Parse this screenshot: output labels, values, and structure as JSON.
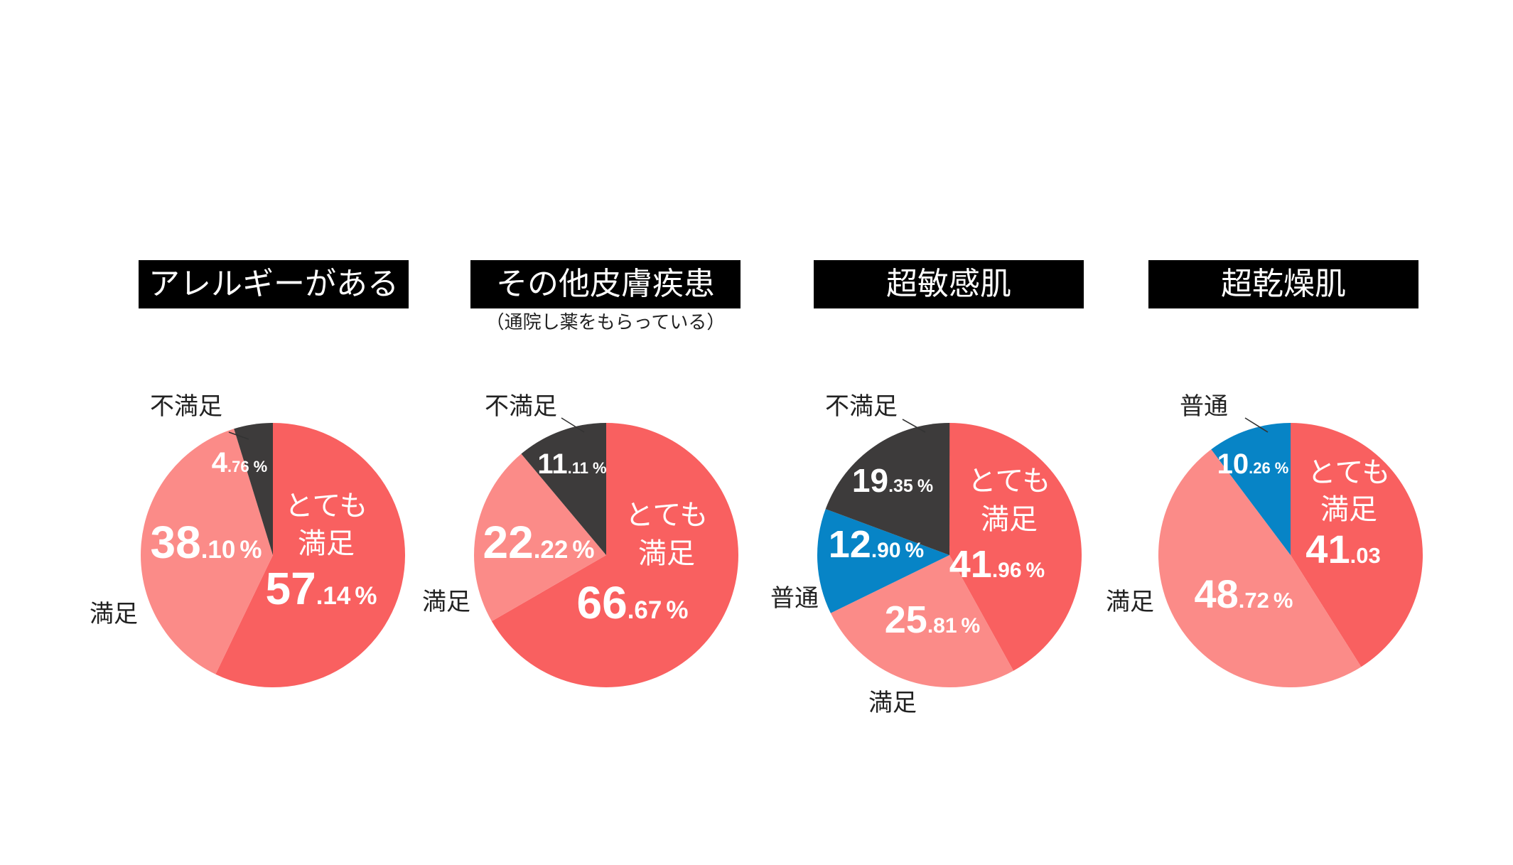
{
  "chart_data": [
    {
      "type": "pie",
      "title": "アレルギーがある",
      "subtitle": "",
      "slices": [
        {
          "name": "とても満足",
          "value": 57.14,
          "int": "57",
          "dec": ".14",
          "pct": "%",
          "color": "#f96060",
          "inner_label": [
            "とても",
            "満足"
          ]
        },
        {
          "name": "満足",
          "value": 38.1,
          "int": "38",
          "dec": ".10",
          "pct": "%",
          "color": "#fb8b88",
          "outer_label": "満足"
        },
        {
          "name": "不満足",
          "value": 4.76,
          "int": "4",
          "dec": ".76",
          "pct": "%",
          "color": "#3d3b3b",
          "outer_label": "不満足"
        }
      ]
    },
    {
      "type": "pie",
      "title": "その他皮膚疾患",
      "subtitle": "（通院し薬をもらっている）",
      "slices": [
        {
          "name": "とても満足",
          "value": 66.67,
          "int": "66",
          "dec": ".67",
          "pct": "%",
          "color": "#f96060",
          "inner_label": [
            "とても",
            "満足"
          ]
        },
        {
          "name": "満足",
          "value": 22.22,
          "int": "22",
          "dec": ".22",
          "pct": "%",
          "color": "#fb8b88",
          "outer_label": "満足"
        },
        {
          "name": "不満足",
          "value": 11.11,
          "int": "11",
          "dec": ".11",
          "pct": "%",
          "color": "#3d3b3b",
          "outer_label": "不満足"
        }
      ]
    },
    {
      "type": "pie",
      "title": "超敏感肌",
      "subtitle": "",
      "slices": [
        {
          "name": "とても満足",
          "value": 41.96,
          "int": "41",
          "dec": ".96",
          "pct": "%",
          "color": "#f96060",
          "inner_label": [
            "とても",
            "満足"
          ]
        },
        {
          "name": "満足",
          "value": 25.81,
          "int": "25",
          "dec": ".81",
          "pct": "%",
          "color": "#fb8b88",
          "outer_label": "満足"
        },
        {
          "name": "普通",
          "value": 12.9,
          "int": "12",
          "dec": ".90",
          "pct": "%",
          "color": "#0784c6",
          "outer_label": "普通"
        },
        {
          "name": "不満足",
          "value": 19.35,
          "int": "19",
          "dec": ".35",
          "pct": "%",
          "color": "#3d3b3b",
          "outer_label": "不満足"
        }
      ]
    },
    {
      "type": "pie",
      "title": "超乾燥肌",
      "subtitle": "",
      "slices": [
        {
          "name": "とても満足",
          "value": 41.03,
          "int": "41",
          "dec": ".03",
          "pct": "",
          "color": "#f96060",
          "inner_label": [
            "とても",
            "満足"
          ]
        },
        {
          "name": "満足",
          "value": 48.72,
          "int": "48",
          "dec": ".72",
          "pct": "%",
          "color": "#fb8b88",
          "outer_label": "満足"
        },
        {
          "name": "普通",
          "value": 10.26,
          "int": "10",
          "dec": ".26",
          "pct": "%",
          "color": "#0784c6",
          "outer_label": "普通"
        }
      ]
    }
  ]
}
